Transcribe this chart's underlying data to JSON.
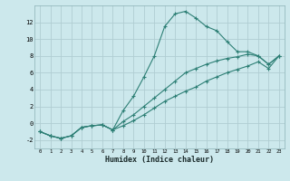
{
  "xlabel": "Humidex (Indice chaleur)",
  "background_color": "#cce8ec",
  "grid_color": "#b0cdd2",
  "line_color": "#2d7f75",
  "x_ticks": [
    0,
    1,
    2,
    3,
    4,
    5,
    6,
    7,
    8,
    9,
    10,
    11,
    12,
    13,
    14,
    15,
    16,
    17,
    18,
    19,
    20,
    21,
    22,
    23
  ],
  "ylim": [
    -3.0,
    14.0
  ],
  "xlim": [
    -0.5,
    23.5
  ],
  "series1_x": [
    0,
    1,
    2,
    3,
    4,
    5,
    6,
    7,
    8,
    9,
    10,
    11,
    12,
    13,
    14,
    15,
    16,
    17,
    18,
    19,
    20,
    21,
    22,
    23
  ],
  "series1_y": [
    -1.0,
    -1.5,
    -1.8,
    -1.5,
    -0.5,
    -0.3,
    -0.2,
    -0.8,
    1.5,
    3.2,
    5.5,
    8.0,
    11.5,
    13.0,
    13.3,
    12.5,
    11.5,
    11.0,
    9.7,
    8.5,
    8.5,
    8.0,
    7.0,
    8.0
  ],
  "series2_x": [
    0,
    1,
    2,
    3,
    4,
    5,
    6,
    7,
    8,
    9,
    10,
    11,
    12,
    13,
    14,
    15,
    16,
    17,
    18,
    19,
    20,
    21,
    22,
    23
  ],
  "series2_y": [
    -1.0,
    -1.5,
    -1.8,
    -1.5,
    -0.5,
    -0.3,
    -0.2,
    -0.8,
    0.2,
    1.0,
    2.0,
    3.0,
    4.0,
    5.0,
    6.0,
    6.5,
    7.0,
    7.4,
    7.7,
    7.9,
    8.2,
    8.0,
    7.0,
    8.0
  ],
  "series3_x": [
    0,
    1,
    2,
    3,
    4,
    5,
    6,
    7,
    8,
    9,
    10,
    11,
    12,
    13,
    14,
    15,
    16,
    17,
    18,
    19,
    20,
    21,
    22,
    23
  ],
  "series3_y": [
    -1.0,
    -1.5,
    -1.8,
    -1.5,
    -0.5,
    -0.3,
    -0.2,
    -0.8,
    -0.3,
    0.3,
    1.0,
    1.8,
    2.6,
    3.2,
    3.8,
    4.3,
    5.0,
    5.5,
    6.0,
    6.4,
    6.8,
    7.3,
    6.5,
    8.0
  ],
  "ytick_values": [
    -2,
    0,
    2,
    4,
    6,
    8,
    10,
    12
  ]
}
